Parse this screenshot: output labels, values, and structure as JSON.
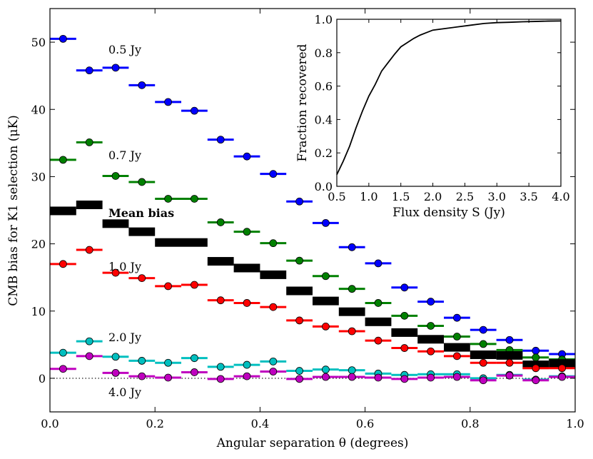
{
  "chart_data": [
    {
      "type": "scatter",
      "title": "",
      "xlabel": "Angular separation θ (degrees)",
      "ylabel": "CMB bias for K1 selection (μK)",
      "xlim": [
        0.0,
        1.0
      ],
      "ylim": [
        -5,
        55
      ],
      "xticks": [
        "0.0",
        "0.2",
        "0.4",
        "0.6",
        "0.8",
        "1.0"
      ],
      "yticks": [
        "0",
        "10",
        "20",
        "30",
        "40",
        "50"
      ],
      "x": [
        0.025,
        0.075,
        0.125,
        0.175,
        0.225,
        0.275,
        0.325,
        0.375,
        0.425,
        0.475,
        0.525,
        0.575,
        0.625,
        0.675,
        0.725,
        0.775,
        0.825,
        0.875,
        0.925,
        0.975
      ],
      "bin_width": 0.05,
      "zero_line": true,
      "series": [
        {
          "name": "0.5 Jy",
          "color": "#0000ff",
          "values": [
            50.5,
            45.8,
            46.2,
            43.6,
            41.1,
            39.8,
            35.5,
            33.0,
            30.4,
            26.3,
            23.1,
            19.5,
            17.1,
            13.5,
            11.4,
            9.0,
            7.2,
            5.7,
            4.1,
            3.6
          ]
        },
        {
          "name": "0.7 Jy",
          "color": "#008000",
          "values": [
            32.5,
            35.1,
            30.1,
            29.2,
            26.7,
            26.7,
            23.2,
            21.8,
            20.1,
            17.5,
            15.2,
            13.3,
            11.2,
            9.3,
            7.8,
            6.2,
            5.1,
            4.2,
            3.1,
            2.8
          ]
        },
        {
          "name": "Mean bias",
          "color": "#000000",
          "marker": "bar",
          "values": [
            24.9,
            25.8,
            23.0,
            21.8,
            20.2,
            20.2,
            17.4,
            16.4,
            15.4,
            13.0,
            11.5,
            9.9,
            8.4,
            6.8,
            5.8,
            4.6,
            3.5,
            3.4,
            2.0,
            2.2
          ]
        },
        {
          "name": "1.0 Jy",
          "color": "#ff0000",
          "values": [
            17.0,
            19.1,
            15.7,
            14.9,
            13.7,
            13.9,
            11.6,
            11.2,
            10.6,
            8.6,
            7.7,
            7.0,
            5.6,
            4.5,
            4.0,
            3.3,
            2.3,
            2.3,
            1.5,
            1.5
          ]
        },
        {
          "name": "2.0 Jy",
          "color": "#00bfbf",
          "values": [
            3.8,
            5.5,
            3.2,
            2.6,
            2.3,
            3.0,
            1.7,
            2.0,
            2.5,
            1.1,
            1.3,
            1.2,
            0.7,
            0.5,
            0.6,
            0.6,
            0.0,
            0.5,
            -0.2,
            0.3
          ]
        },
        {
          "name": "4.0 Jy",
          "color": "#bf00bf",
          "values": [
            1.4,
            3.3,
            0.8,
            0.3,
            0.1,
            0.9,
            -0.1,
            0.3,
            1.0,
            -0.1,
            0.2,
            0.2,
            0.1,
            -0.1,
            0.1,
            0.2,
            -0.3,
            0.4,
            -0.3,
            0.2
          ]
        }
      ],
      "annotations": [
        {
          "key": "a05",
          "text": "0.5 Jy"
        },
        {
          "key": "a07",
          "text": "0.7 Jy"
        },
        {
          "key": "amean",
          "text": "Mean bias"
        },
        {
          "key": "a10",
          "text": "1.0 Jy"
        },
        {
          "key": "a20",
          "text": "2.0 Jy"
        },
        {
          "key": "a40",
          "text": "4.0 Jy"
        }
      ]
    },
    {
      "type": "line",
      "title": "",
      "xlabel": "Flux density S (Jy)",
      "ylabel": "Fraction recovered",
      "xlim": [
        0.5,
        4.0
      ],
      "ylim": [
        0.0,
        1.0
      ],
      "xticks": [
        "0.5",
        "1.0",
        "1.5",
        "2.0",
        "2.5",
        "3.0",
        "3.5",
        "4.0"
      ],
      "yticks": [
        "0.0",
        "0.2",
        "0.4",
        "0.6",
        "0.8",
        "1.0"
      ],
      "x": [
        0.5,
        0.6,
        0.7,
        0.8,
        0.9,
        1.0,
        1.1,
        1.2,
        1.3,
        1.4,
        1.5,
        1.6,
        1.7,
        1.8,
        1.9,
        2.0,
        2.2,
        2.4,
        2.6,
        2.8,
        3.0,
        3.2,
        3.4,
        3.6,
        3.8,
        4.0
      ],
      "series": [
        {
          "name": "Fraction recovered",
          "color": "#000000",
          "values": [
            0.07,
            0.15,
            0.24,
            0.35,
            0.45,
            0.54,
            0.61,
            0.69,
            0.74,
            0.79,
            0.835,
            0.86,
            0.885,
            0.905,
            0.92,
            0.935,
            0.945,
            0.955,
            0.965,
            0.975,
            0.98,
            0.982,
            0.985,
            0.987,
            0.989,
            0.99
          ]
        }
      ]
    }
  ]
}
